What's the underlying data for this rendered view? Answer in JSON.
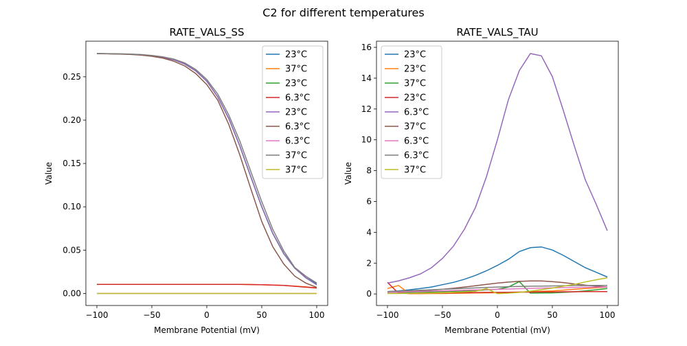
{
  "suptitle": "C2 for different temperatures",
  "chart_data": [
    {
      "type": "line",
      "title": "RATE_VALS_SS",
      "xlabel": "Membrane Potential (mV)",
      "ylabel": "Value",
      "xlim": [
        -110,
        110
      ],
      "ylim": [
        -0.0139,
        0.2911
      ],
      "xticks": [
        -100,
        -50,
        0,
        50,
        100
      ],
      "xtick_labels": [
        "−100",
        "−50",
        "0",
        "50",
        "100"
      ],
      "yticks": [
        0,
        0.05,
        0.1,
        0.15,
        0.2,
        0.25
      ],
      "ytick_labels": [
        "0.00",
        "0.05",
        "0.10",
        "0.15",
        "0.20",
        "0.25"
      ],
      "legend_position": "upper-right",
      "x": [
        -100,
        -90,
        -80,
        -70,
        -60,
        -50,
        -40,
        -30,
        -20,
        -10,
        0,
        10,
        20,
        30,
        40,
        50,
        60,
        70,
        80,
        90,
        100
      ],
      "series": [
        {
          "name": "23°C",
          "color": "#1f77b4",
          "values": [
            0.2768,
            0.2767,
            0.2764,
            0.2761,
            0.2754,
            0.2743,
            0.2725,
            0.2696,
            0.2647,
            0.2569,
            0.245,
            0.2268,
            0.2019,
            0.1704,
            0.1349,
            0.1,
            0.0694,
            0.0459,
            0.0293,
            0.0182,
            0.0111
          ]
        },
        {
          "name": "37°C",
          "color": "#ff7f0e",
          "values": [
            0.0105,
            0.0105,
            0.0105,
            0.0105,
            0.0105,
            0.0105,
            0.0105,
            0.0105,
            0.0105,
            0.0105,
            0.0105,
            0.0105,
            0.0105,
            0.0104,
            0.0103,
            0.0101,
            0.0097,
            0.0092,
            0.0085,
            0.0076,
            0.0066
          ]
        },
        {
          "name": "23°C",
          "color": "#2ca02c",
          "values": [
            0.2768,
            0.2767,
            0.2764,
            0.2761,
            0.2754,
            0.2743,
            0.2725,
            0.2696,
            0.2647,
            0.2569,
            0.245,
            0.2268,
            0.2019,
            0.1704,
            0.1349,
            0.1,
            0.0694,
            0.0459,
            0.0293,
            0.0182,
            0.01
          ]
        },
        {
          "name": "6.3°C",
          "color": "#d62728",
          "values": [
            0.0105,
            0.0105,
            0.0105,
            0.0105,
            0.0105,
            0.0105,
            0.0105,
            0.0105,
            0.0105,
            0.0105,
            0.0105,
            0.0105,
            0.0105,
            0.0104,
            0.0103,
            0.0101,
            0.0097,
            0.0092,
            0.0083,
            0.0073,
            0.0062
          ]
        },
        {
          "name": "23°C",
          "color": "#9467bd",
          "values": [
            0.2768,
            0.2767,
            0.2764,
            0.2761,
            0.2754,
            0.2743,
            0.2725,
            0.2696,
            0.2647,
            0.2569,
            0.245,
            0.2268,
            0.2019,
            0.1704,
            0.1349,
            0.1,
            0.0694,
            0.0459,
            0.0293,
            0.0182,
            0.01
          ]
        },
        {
          "name": "6.3°C",
          "color": "#8c564b",
          "values": [
            0.2766,
            0.2765,
            0.2762,
            0.2758,
            0.275,
            0.2737,
            0.2716,
            0.268,
            0.2625,
            0.2537,
            0.241,
            0.223,
            0.195,
            0.16,
            0.121,
            0.083,
            0.054,
            0.034,
            0.02,
            0.012,
            0.007
          ]
        },
        {
          "name": "6.3°C",
          "color": "#e377c2",
          "values": [
            0,
            0,
            0,
            0,
            0,
            0,
            0,
            0,
            0,
            0,
            0,
            0,
            0,
            0,
            0,
            0,
            0,
            0,
            0,
            0,
            0
          ]
        },
        {
          "name": "37°C",
          "color": "#7f7f7f",
          "values": [
            0.2769,
            0.2768,
            0.2766,
            0.2763,
            0.2757,
            0.2747,
            0.2731,
            0.2704,
            0.266,
            0.2585,
            0.247,
            0.23,
            0.206,
            0.176,
            0.141,
            0.106,
            0.074,
            0.049,
            0.03,
            0.02,
            0.012
          ]
        },
        {
          "name": "37°C",
          "color": "#bcbd22",
          "values": [
            0,
            0,
            0,
            0,
            0,
            0,
            0,
            0,
            0,
            0,
            0,
            0,
            0,
            0,
            0,
            0,
            0,
            0,
            0,
            0,
            0
          ]
        }
      ]
    },
    {
      "type": "line",
      "title": "RATE_VALS_TAU",
      "xlabel": "Membrane Potential (mV)",
      "ylabel": "Value",
      "xlim": [
        -110,
        110
      ],
      "ylim": [
        -0.75,
        16.4
      ],
      "xticks": [
        -100,
        -50,
        0,
        50,
        100
      ],
      "xtick_labels": [
        "−100",
        "−50",
        "0",
        "50",
        "100"
      ],
      "yticks": [
        0,
        2,
        4,
        6,
        8,
        10,
        12,
        14,
        16
      ],
      "ytick_labels": [
        "0",
        "2",
        "4",
        "6",
        "8",
        "10",
        "12",
        "14",
        "16"
      ],
      "legend_position": "upper-left",
      "x": [
        -100,
        -90,
        -80,
        -70,
        -60,
        -50,
        -40,
        -30,
        -20,
        -10,
        0,
        10,
        20,
        30,
        40,
        50,
        60,
        70,
        80,
        90,
        100
      ],
      "series": [
        {
          "name": "23°C",
          "color": "#1f77b4",
          "values": [
            0.15,
            0.2,
            0.27,
            0.35,
            0.45,
            0.6,
            0.75,
            0.95,
            1.2,
            1.5,
            1.85,
            2.25,
            2.75,
            3.0,
            3.05,
            2.85,
            2.5,
            2.1,
            1.7,
            1.4,
            1.1
          ]
        },
        {
          "name": "23°C",
          "color": "#ff7f0e",
          "values": [
            0.35,
            0.55,
            0.02,
            0.02,
            0.03,
            0.03,
            0.04,
            0.05,
            0.06,
            0.07,
            0.08,
            0.1,
            0.12,
            0.14,
            0.17,
            0.2,
            0.25,
            0.3,
            0.35,
            0.4,
            0.45
          ]
        },
        {
          "name": "37°C",
          "color": "#2ca02c",
          "values": [
            0.1,
            0.1,
            0.11,
            0.12,
            0.13,
            0.15,
            0.17,
            0.19,
            0.22,
            0.26,
            0.3,
            0.45,
            0.8,
            0.05,
            0.06,
            0.07,
            0.1,
            0.14,
            0.2,
            0.27,
            0.35
          ]
        },
        {
          "name": "23°C",
          "color": "#d62728",
          "values": [
            0.75,
            0.05,
            0.03,
            0.04,
            0.05,
            0.06,
            0.07,
            0.08,
            0.09,
            0.1,
            0.1,
            0.11,
            0.12,
            0.12,
            0.13,
            0.13,
            0.14,
            0.14,
            0.15,
            0.15,
            0.15
          ]
        },
        {
          "name": "6.3°C",
          "color": "#9467bd",
          "values": [
            0.7,
            0.85,
            1.05,
            1.3,
            1.7,
            2.3,
            3.1,
            4.2,
            5.6,
            7.6,
            10.0,
            12.6,
            14.5,
            15.6,
            15.45,
            14.1,
            11.9,
            9.6,
            7.4,
            5.8,
            4.1
          ]
        },
        {
          "name": "37°C",
          "color": "#8c564b",
          "values": [
            0.1,
            0.13,
            0.17,
            0.2,
            0.25,
            0.3,
            0.37,
            0.45,
            0.53,
            0.62,
            0.7,
            0.77,
            0.82,
            0.84,
            0.84,
            0.8,
            0.74,
            0.65,
            0.57,
            0.5,
            0.45
          ]
        },
        {
          "name": "6.3°C",
          "color": "#e377c2",
          "values": [
            0.1,
            0.12,
            0.14,
            0.16,
            0.18,
            0.2,
            0.22,
            0.24,
            0.26,
            0.28,
            0.3,
            0.32,
            0.34,
            0.36,
            0.38,
            0.4,
            0.41,
            0.42,
            0.43,
            0.44,
            0.45
          ]
        },
        {
          "name": "6.3°C",
          "color": "#7f7f7f",
          "values": [
            0.15,
            0.18,
            0.21,
            0.24,
            0.27,
            0.3,
            0.33,
            0.36,
            0.39,
            0.42,
            0.45,
            0.47,
            0.49,
            0.5,
            0.51,
            0.52,
            0.53,
            0.54,
            0.54,
            0.55,
            0.55
          ]
        },
        {
          "name": "37°C",
          "color": "#bcbd22",
          "values": [
            0.03,
            0.03,
            0.04,
            0.05,
            0.06,
            0.08,
            0.1,
            0.13,
            0.17,
            0.35,
            0.02,
            0.05,
            0.1,
            0.18,
            0.28,
            0.38,
            0.5,
            0.62,
            0.78,
            0.92,
            1.05
          ]
        }
      ]
    }
  ]
}
